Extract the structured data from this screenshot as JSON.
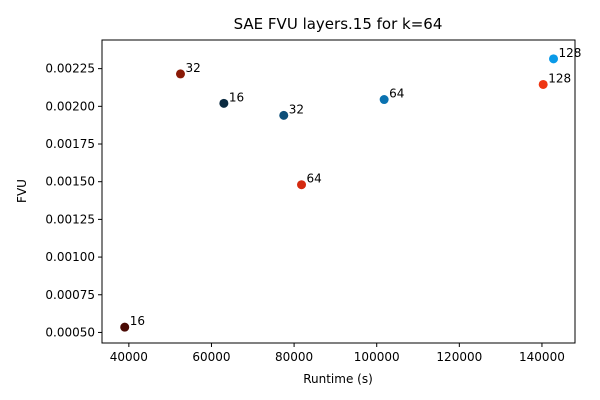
{
  "chart_data": {
    "type": "scatter",
    "title": "SAE FVU layers.15 for k=64",
    "xlabel": "Runtime (s)",
    "ylabel": "FVU",
    "xlim": [
      33500,
      148000
    ],
    "ylim": [
      0.00043,
      0.00244
    ],
    "xticks": [
      40000,
      60000,
      80000,
      100000,
      120000,
      140000
    ],
    "xtick_labels": [
      "40000",
      "60000",
      "80000",
      "100000",
      "120000",
      "140000"
    ],
    "yticks": [
      0.0005,
      0.00075,
      0.001,
      0.00125,
      0.0015,
      0.00175,
      0.002,
      0.00225
    ],
    "ytick_labels": [
      "0.00050",
      "0.00075",
      "0.00100",
      "0.00125",
      "0.00150",
      "0.00175",
      "0.00200",
      "0.00225"
    ],
    "grid": false,
    "points": [
      {
        "x": 39000,
        "y": 0.000535,
        "label": "16",
        "color": "#4a0a04"
      },
      {
        "x": 52500,
        "y": 0.002215,
        "label": "32",
        "color": "#8a1a06"
      },
      {
        "x": 63000,
        "y": 0.00202,
        "label": "16",
        "color": "#0a2a40"
      },
      {
        "x": 77500,
        "y": 0.00194,
        "label": "32",
        "color": "#0d4f79"
      },
      {
        "x": 81800,
        "y": 0.00148,
        "label": "64",
        "color": "#d42a10"
      },
      {
        "x": 101800,
        "y": 0.002045,
        "label": "64",
        "color": "#0a72b0"
      },
      {
        "x": 140300,
        "y": 0.002145,
        "label": "128",
        "color": "#ee3512"
      },
      {
        "x": 142800,
        "y": 0.002315,
        "label": "128",
        "color": "#0a9ae8"
      }
    ]
  }
}
